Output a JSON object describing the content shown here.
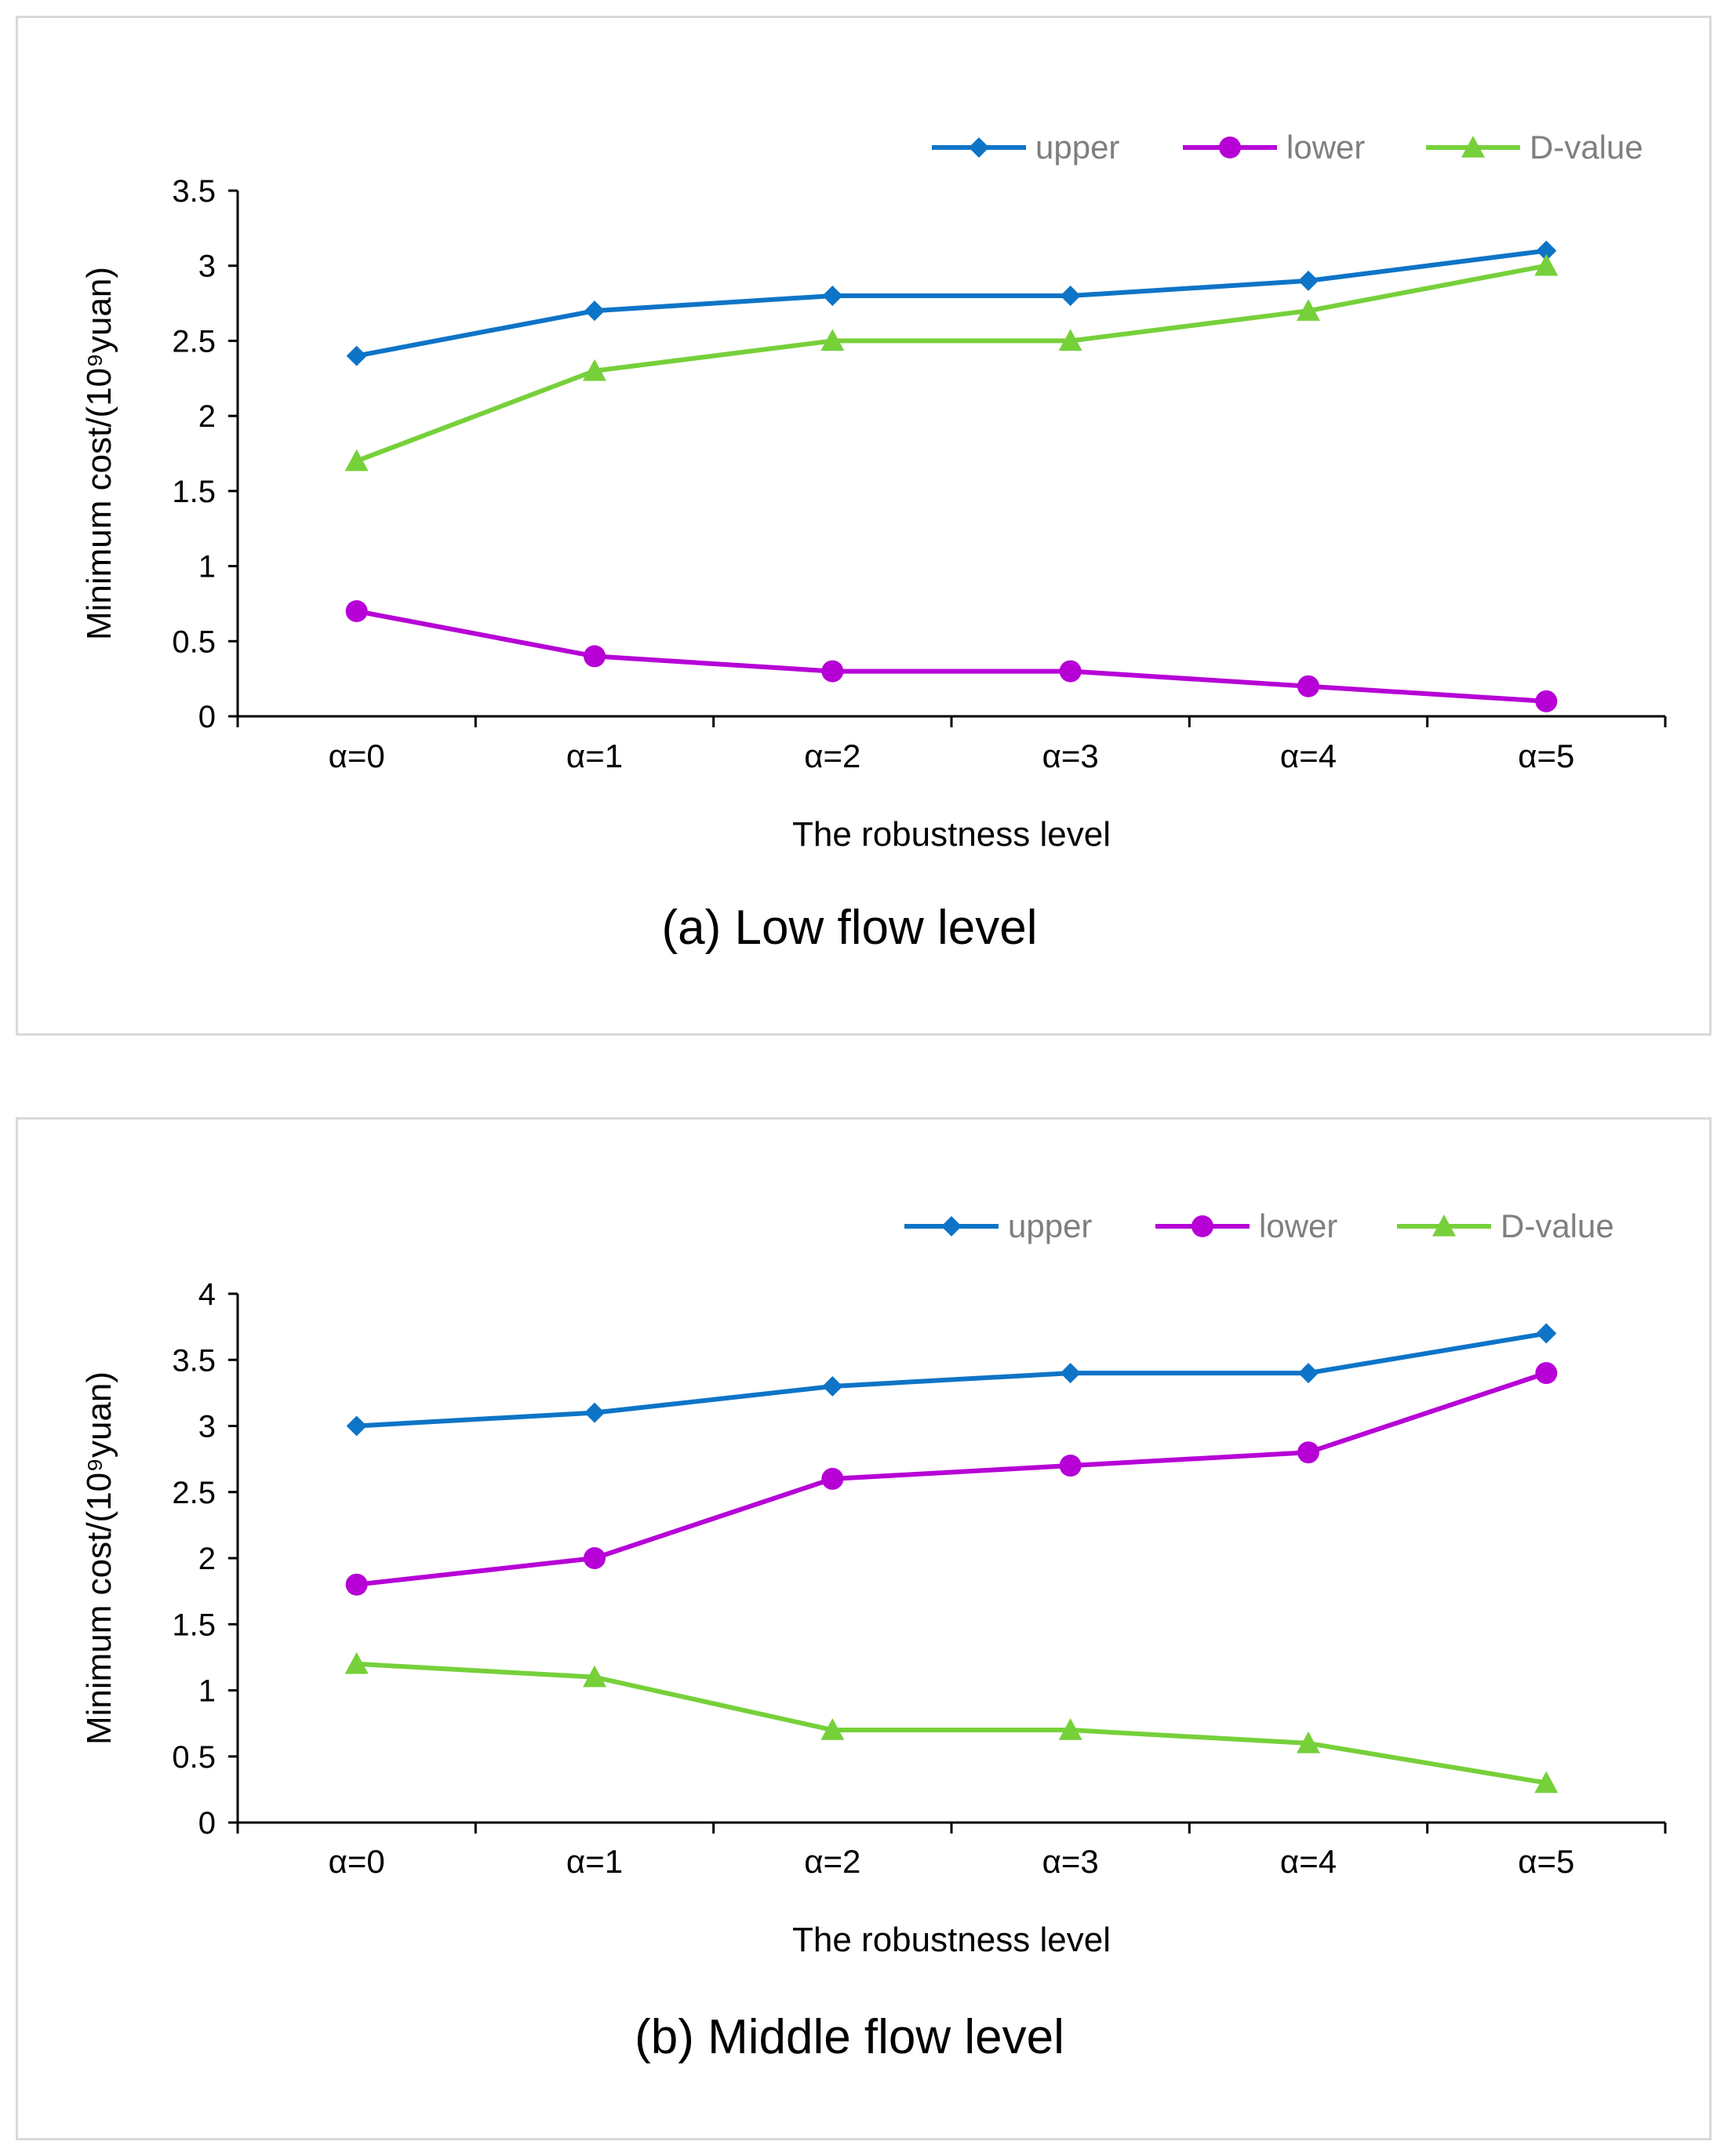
{
  "colors": {
    "upper": "#0e74c7",
    "lower": "#b600d6",
    "dvalue": "#76d03a",
    "axis": "#000000",
    "legend_text": "#7f7f7f"
  },
  "chart_data": [
    {
      "type": "line",
      "title": "(a) Low flow level",
      "xlabel": "The robustness level",
      "ylabel": "Minimum cost/(10⁹yuan)",
      "categories": [
        "α=0",
        "α=1",
        "α=2",
        "α=3",
        "α=4",
        "α=5"
      ],
      "ylim": [
        0,
        3.5
      ],
      "yticks": [
        0,
        0.5,
        1,
        1.5,
        2,
        2.5,
        3,
        3.5
      ],
      "ytick_labels": [
        "0",
        "0.5",
        "1",
        "1.5",
        "2",
        "2.5",
        "3",
        "3.5"
      ],
      "legend_position": "top-right",
      "series": [
        {
          "name": "upper",
          "marker": "diamond",
          "values": [
            2.4,
            2.7,
            2.8,
            2.8,
            2.9,
            3.1
          ]
        },
        {
          "name": "lower",
          "marker": "circle",
          "values": [
            0.7,
            0.4,
            0.3,
            0.3,
            0.2,
            0.1
          ]
        },
        {
          "name": "D-value",
          "marker": "triangle",
          "values": [
            1.7,
            2.3,
            2.5,
            2.5,
            2.7,
            3.0
          ]
        }
      ]
    },
    {
      "type": "line",
      "title": "(b) Middle flow level",
      "xlabel": "The robustness level",
      "ylabel": "Minimum cost/(10⁹yuan)",
      "categories": [
        "α=0",
        "α=1",
        "α=2",
        "α=3",
        "α=4",
        "α=5"
      ],
      "ylim": [
        0,
        4
      ],
      "yticks": [
        0,
        0.5,
        1,
        1.5,
        2,
        2.5,
        3,
        3.5,
        4
      ],
      "ytick_labels": [
        "0",
        "0.5",
        "1",
        "1.5",
        "2",
        "2.5",
        "3",
        "3.5",
        "4"
      ],
      "legend_position": "top-right",
      "series": [
        {
          "name": "upper",
          "marker": "diamond",
          "values": [
            3.0,
            3.1,
            3.3,
            3.4,
            3.4,
            3.7
          ]
        },
        {
          "name": "lower",
          "marker": "circle",
          "values": [
            1.8,
            2.0,
            2.6,
            2.7,
            2.8,
            3.4
          ]
        },
        {
          "name": "D-value",
          "marker": "triangle",
          "values": [
            1.2,
            1.1,
            0.7,
            0.7,
            0.6,
            0.3
          ]
        }
      ]
    }
  ]
}
